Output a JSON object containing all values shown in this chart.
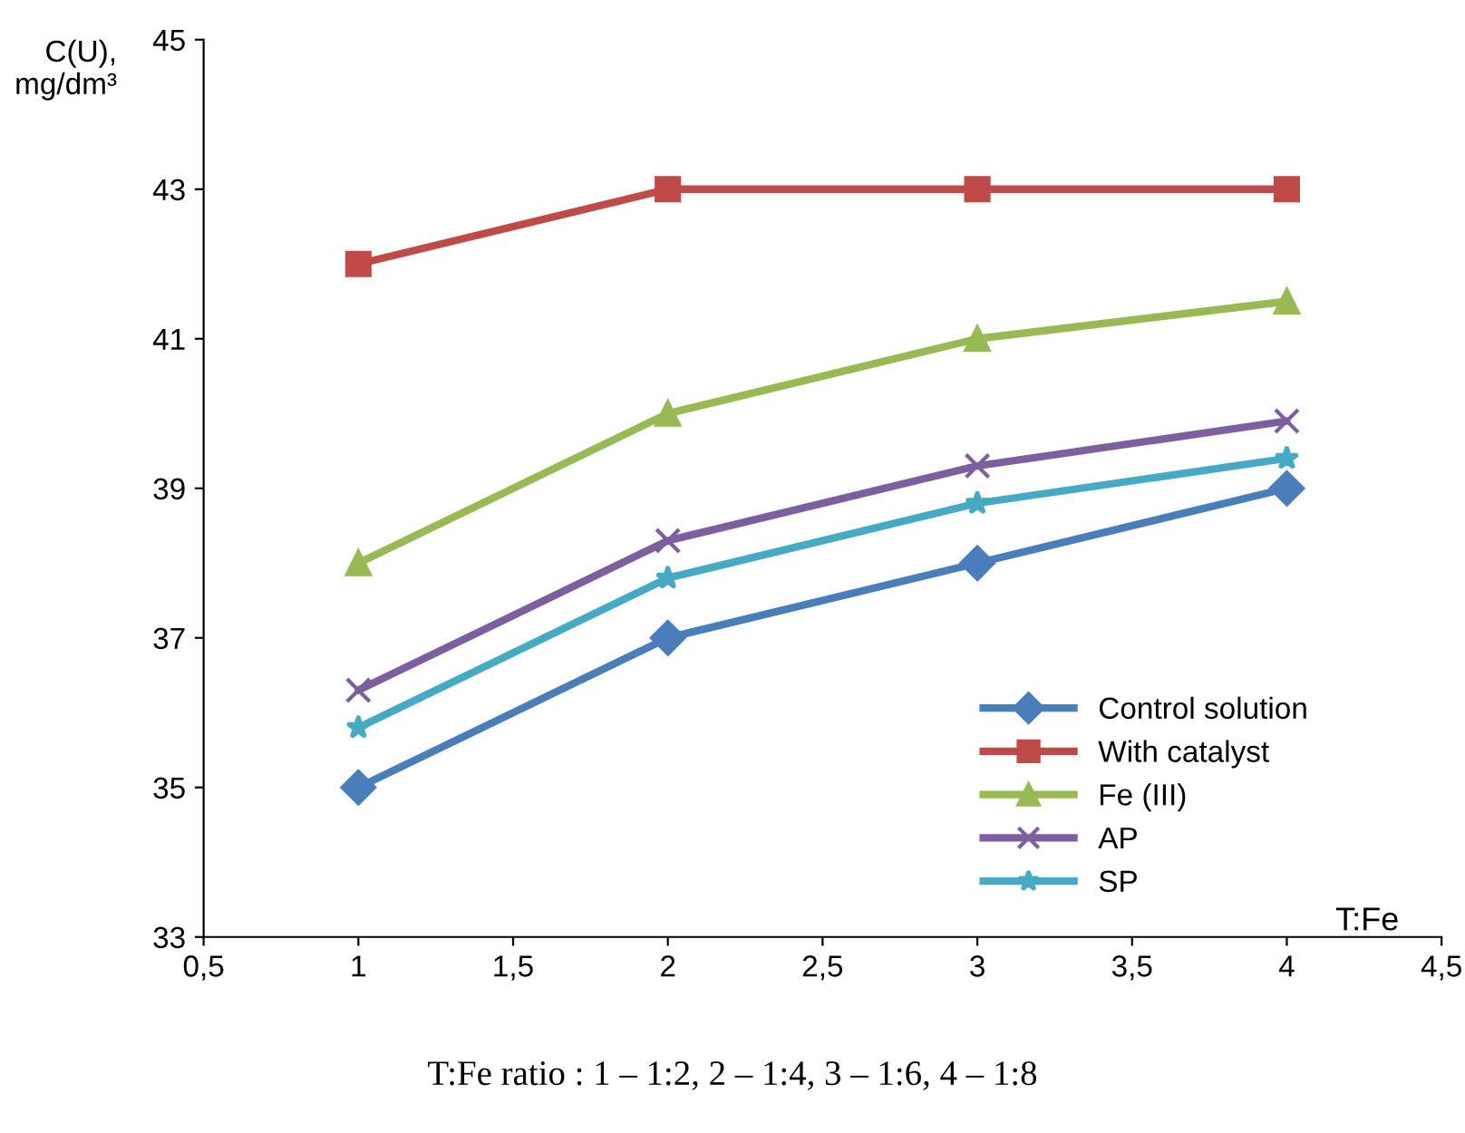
{
  "chart_data": {
    "type": "line",
    "ylabel": "C(U),\nmg/dm³",
    "xlabel": "T:Fe",
    "x": [
      1,
      2,
      3,
      4
    ],
    "series": [
      {
        "name": "Control solution",
        "color": "#4a7ebb",
        "marker": "diamond",
        "values": [
          35,
          37,
          38,
          39
        ]
      },
      {
        "name": "With catalyst",
        "color": "#be4b48",
        "marker": "square",
        "values": [
          42,
          43,
          43,
          43
        ]
      },
      {
        "name": "Fe (III)",
        "color": "#98b954",
        "marker": "triangle",
        "values": [
          38,
          40,
          41,
          41.5
        ]
      },
      {
        "name": "AP",
        "color": "#7d5fa0",
        "marker": "cross",
        "values": [
          36.3,
          38.3,
          39.3,
          39.9
        ]
      },
      {
        "name": "SP",
        "color": "#46aac5",
        "marker": "star",
        "values": [
          35.8,
          37.8,
          38.8,
          39.4
        ]
      }
    ],
    "xlim": [
      0.5,
      4.5
    ],
    "xticks": [
      {
        "value": 0.5,
        "label": "0,5"
      },
      1,
      {
        "value": 1.5,
        "label": "1,5"
      },
      2,
      {
        "value": 2.5,
        "label": "2,5"
      },
      3,
      {
        "value": 3.5,
        "label": "3,5"
      },
      4,
      {
        "value": 4.5,
        "label": "4,5"
      }
    ],
    "ylim": [
      33,
      45
    ],
    "yticks": [
      33,
      35,
      37,
      39,
      41,
      43,
      45
    ],
    "grid": false,
    "legend": "bottom right",
    "line_style": "solid",
    "annotations": [
      "T:Fe ratio : 1 – 1:2, 2 – 1:4, 3 – 1:6, 4 – 1:8"
    ]
  }
}
